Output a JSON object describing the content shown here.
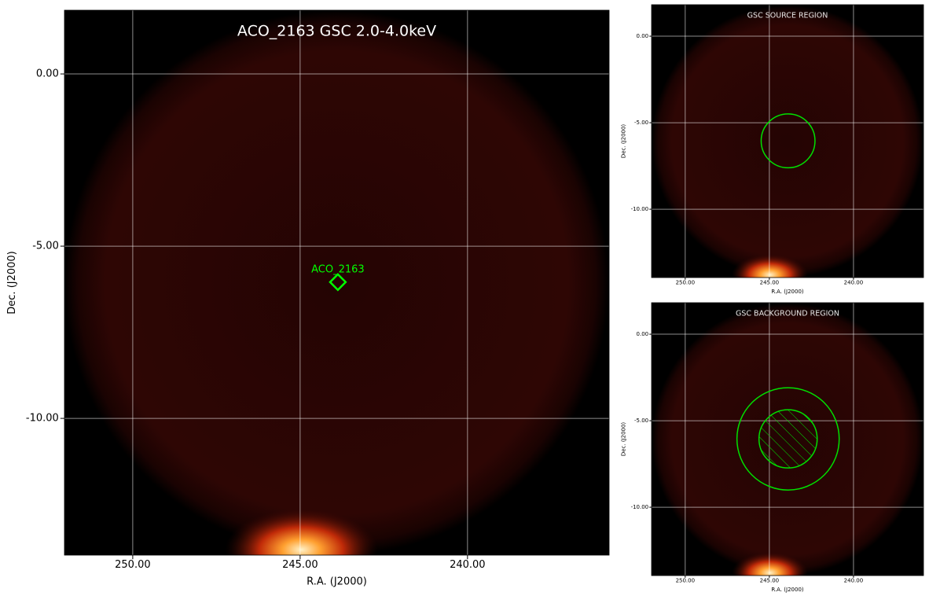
{
  "main": {
    "title": "ACO_2163 GSC 2.0-4.0keV",
    "source_label": "ACO_2163",
    "xlabel": "R.A. (J2000)",
    "ylabel": "Dec. (J2000)",
    "xlim": [
      252.04,
      235.77
    ],
    "ylim": [
      -13.97,
      1.85
    ],
    "xticks": [
      {
        "value": 250,
        "label": "250.00"
      },
      {
        "value": 245,
        "label": "245.00"
      },
      {
        "value": 240,
        "label": "240.00"
      }
    ],
    "yticks": [
      {
        "value": 0,
        "label": "0.00"
      },
      {
        "value": -5,
        "label": "-5.00"
      },
      {
        "value": -10,
        "label": "-10.00"
      }
    ]
  },
  "source_panel": {
    "title": "GSC SOURCE REGION",
    "xlabel": "R.A. (J2000)",
    "ylabel": "Dec. (J2000)",
    "xlim": [
      252.0,
      235.84
    ],
    "ylim": [
      -13.95,
      1.82
    ],
    "xticks": [
      {
        "value": 250,
        "label": "250.00"
      },
      {
        "value": 245,
        "label": "245.00"
      },
      {
        "value": 240,
        "label": "240.00"
      }
    ],
    "yticks": [
      {
        "value": 0,
        "label": "0.00"
      },
      {
        "value": -5,
        "label": "-5.00"
      },
      {
        "value": -10,
        "label": "-10.00"
      }
    ]
  },
  "background_panel": {
    "title": "GSC BACKGROUND REGION",
    "xlabel": "R.A. (J2000)",
    "ylabel": "Dec. (J2000)",
    "xlim": [
      252.0,
      235.84
    ],
    "ylim": [
      -13.95,
      1.82
    ],
    "xticks": [
      {
        "value": 250,
        "label": "250.00"
      },
      {
        "value": 245,
        "label": "245.00"
      },
      {
        "value": 240,
        "label": "240.00"
      }
    ],
    "yticks": [
      {
        "value": 0,
        "label": "0.00"
      },
      {
        "value": -5,
        "label": "-5.00"
      },
      {
        "value": -10,
        "label": "-10.00"
      }
    ]
  }
}
